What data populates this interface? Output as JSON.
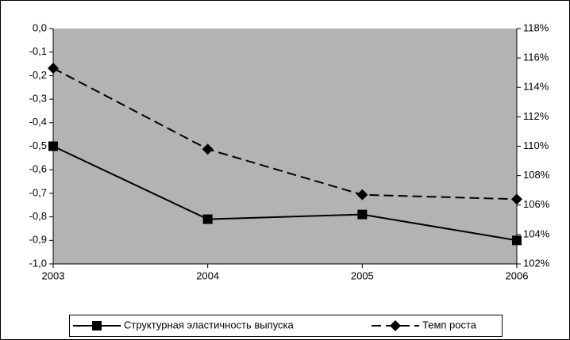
{
  "chart_data": {
    "type": "line",
    "categories": [
      "2003",
      "2004",
      "2005",
      "2006"
    ],
    "series": [
      {
        "name": "Структурная эластичность выпуска",
        "color": "#000000",
        "values": [
          -0.5,
          -0.81,
          -0.79,
          -0.9
        ],
        "axis": "y",
        "dash": false,
        "marker": "square"
      },
      {
        "name": "Темп роста",
        "color": "#000000",
        "values": [
          115.3,
          109.8,
          106.7,
          106.4
        ],
        "axis": "y2",
        "dash": true,
        "marker": "diamond"
      }
    ],
    "ylim": [
      -1.0,
      0.0
    ],
    "yticks": [
      {
        "value": 0,
        "label": "0,0"
      },
      {
        "value": -0.1,
        "label": "-0,1"
      },
      {
        "value": -0.2,
        "label": "-0,2"
      },
      {
        "value": -0.3,
        "label": "-0,3"
      },
      {
        "value": -0.4,
        "label": "-0,4"
      },
      {
        "value": -0.5,
        "label": "-0,5"
      },
      {
        "value": -0.6,
        "label": "-0,6"
      },
      {
        "value": -0.7,
        "label": "-0,7"
      },
      {
        "value": -0.8,
        "label": "-0,8"
      },
      {
        "value": -0.9,
        "label": "-0,9"
      },
      {
        "value": -1.0,
        "label": "-1,0"
      }
    ],
    "y2lim": [
      102,
      118
    ],
    "y2ticks": [
      {
        "value": 118,
        "label": "118%"
      },
      {
        "value": 116,
        "label": "116%"
      },
      {
        "value": 114,
        "label": "114%"
      },
      {
        "value": 112,
        "label": "112%"
      },
      {
        "value": 110,
        "label": "110%"
      },
      {
        "value": 108,
        "label": "108%"
      },
      {
        "value": 106,
        "label": "106%"
      },
      {
        "value": 104,
        "label": "104%"
      },
      {
        "value": 102,
        "label": "102%"
      }
    ],
    "plot_background": "#b3b3b3",
    "grid": false,
    "legend": "bottom"
  }
}
